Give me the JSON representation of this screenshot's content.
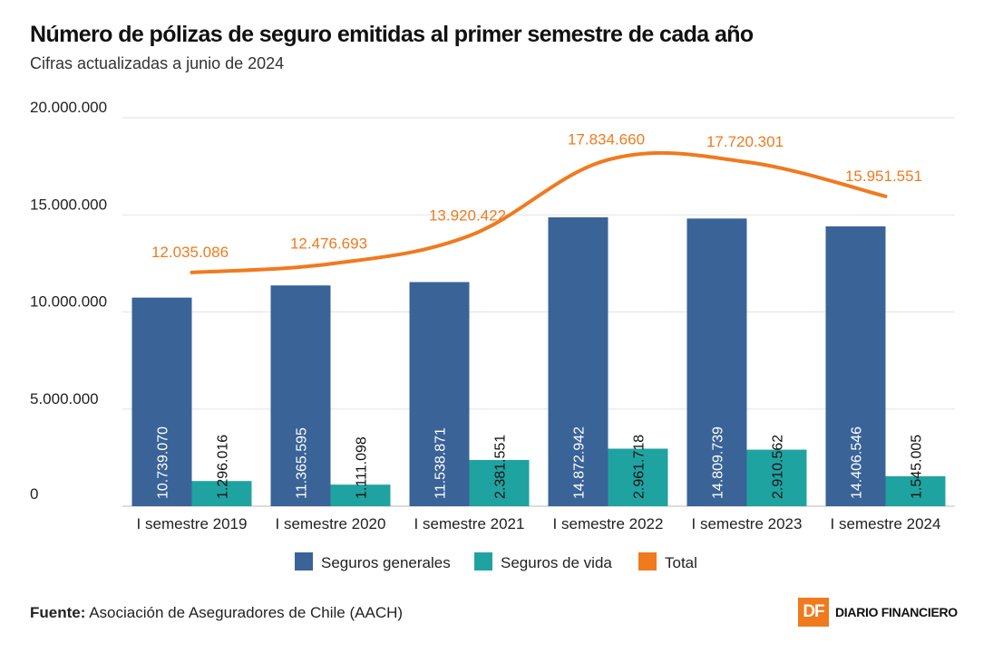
{
  "title": "Número de pólizas de seguro emitidas al primer semestre de cada año",
  "subtitle": "Cifras actualizadas a junio de 2024",
  "source_label": "Fuente:",
  "source_text": "Asociación de Aseguradores de Chile (AACH)",
  "brand": {
    "logo_text": "DF",
    "name": "DIARIO FINANCIERO"
  },
  "colors": {
    "generales": "#3a6398",
    "vida": "#1fa3a1",
    "total": "#f07a1e",
    "grid": "#e2e2e2"
  },
  "chart_data": {
    "type": "bar",
    "categories": [
      "I semestre 2019",
      "I semestre 2020",
      "I semestre 2021",
      "I semestre 2022",
      "I semestre 2023",
      "I semestre 2024"
    ],
    "series": [
      {
        "name": "Seguros generales",
        "type": "bar",
        "values": [
          10739070,
          11365595,
          11538871,
          14872942,
          14809739,
          14406546
        ],
        "labels": [
          "10.739.070",
          "11.365.595",
          "11.538.871",
          "14.872.942",
          "14.809.739",
          "14.406.546"
        ]
      },
      {
        "name": "Seguros de vida",
        "type": "bar",
        "values": [
          1296016,
          1111098,
          2381551,
          2961718,
          2910562,
          1545005
        ],
        "labels": [
          "1.296.016",
          "1.111.098",
          "2.381.551",
          "2.961.718",
          "2.910.562",
          "1.545.005"
        ]
      },
      {
        "name": "Total",
        "type": "line",
        "values": [
          12035086,
          12476693,
          13920422,
          17834660,
          17720301,
          15951551
        ],
        "labels": [
          "12.035.086",
          "12.476.693",
          "13.920.422",
          "17.834.660",
          "17.720.301",
          "15.951.551"
        ]
      }
    ],
    "yticks": [
      0,
      5000000,
      10000000,
      15000000,
      20000000
    ],
    "ytick_labels": [
      "0",
      "5.000.000",
      "10.000.000",
      "15.000.000",
      "20.000.000"
    ],
    "ylim": [
      0,
      20000000
    ],
    "xlabel": "",
    "ylabel": "",
    "legend": [
      "Seguros generales",
      "Seguros de vida",
      "Total"
    ],
    "grid": true
  }
}
